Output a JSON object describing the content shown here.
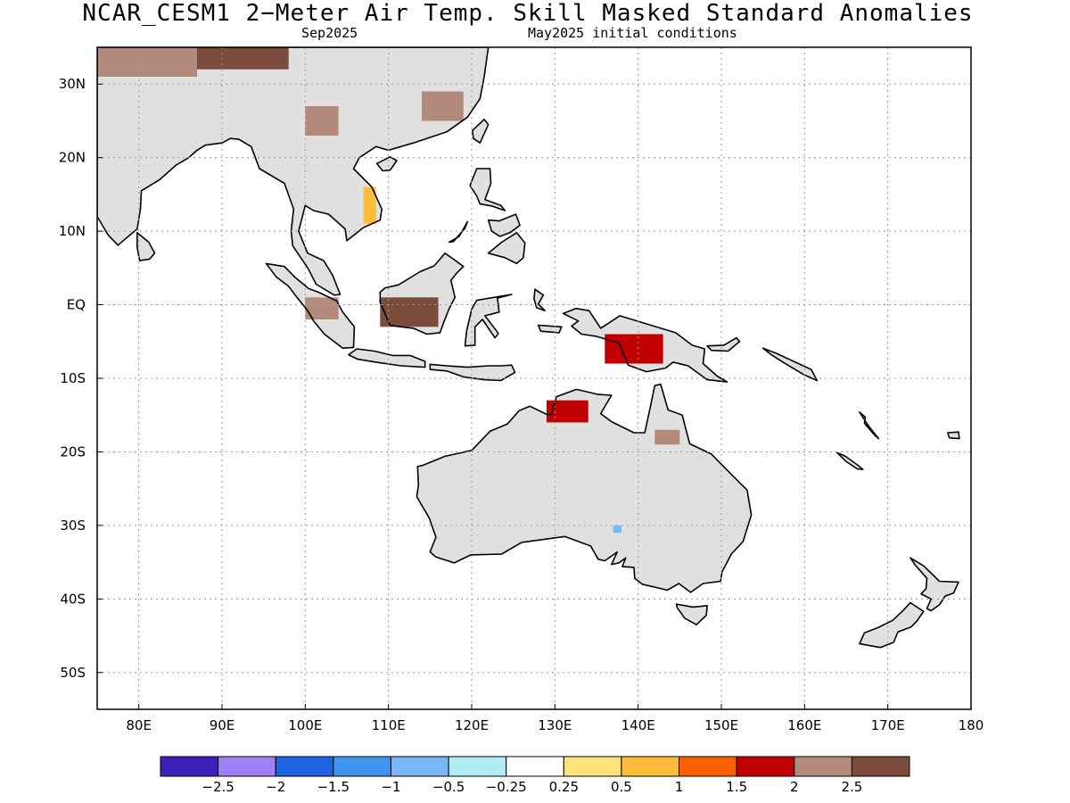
{
  "title": "NCAR_CESM1 2−Meter Air Temp. Skill Masked Standard Anomalies",
  "subtitle_left": "Sep2025",
  "subtitle_right": "May2025 initial conditions",
  "map": {
    "lon_range": [
      75,
      180
    ],
    "lat_range": [
      -55,
      35
    ],
    "grid": true,
    "lon_ticks": [
      {
        "v": 80,
        "label": "80E"
      },
      {
        "v": 90,
        "label": "90E"
      },
      {
        "v": 100,
        "label": "100E"
      },
      {
        "v": 110,
        "label": "110E"
      },
      {
        "v": 120,
        "label": "120E"
      },
      {
        "v": 130,
        "label": "130E"
      },
      {
        "v": 140,
        "label": "140E"
      },
      {
        "v": 150,
        "label": "150E"
      },
      {
        "v": 160,
        "label": "160E"
      },
      {
        "v": 170,
        "label": "170E"
      },
      {
        "v": 180,
        "label": "180"
      }
    ],
    "lat_ticks": [
      {
        "v": 30,
        "label": "30N"
      },
      {
        "v": 20,
        "label": "20N"
      },
      {
        "v": 10,
        "label": "10N"
      },
      {
        "v": 0,
        "label": "EQ"
      },
      {
        "v": -10,
        "label": "10S"
      },
      {
        "v": -20,
        "label": "20S"
      },
      {
        "v": -30,
        "label": "30S"
      },
      {
        "v": -40,
        "label": "40S"
      },
      {
        "v": -50,
        "label": "50S"
      }
    ],
    "anomaly_regions": [
      {
        "name": "south-china-hotspot",
        "level": 2,
        "lon": [
          100,
          104
        ],
        "lat": [
          23,
          27
        ]
      },
      {
        "name": "east-china-hotspot",
        "level": 2,
        "lon": [
          114,
          119
        ],
        "lat": [
          25,
          29
        ]
      },
      {
        "name": "tibet-high",
        "level": 2.5,
        "lon": [
          86,
          98
        ],
        "lat": [
          32,
          35
        ]
      },
      {
        "name": "himalaya-hot",
        "level": 2,
        "lon": [
          75,
          87
        ],
        "lat": [
          31,
          35
        ]
      },
      {
        "name": "indochina-warm",
        "level": 0.5,
        "lon": [
          107,
          108.5
        ],
        "lat": [
          11,
          16
        ]
      },
      {
        "name": "borneo-high",
        "level": 2.5,
        "lon": [
          109,
          116
        ],
        "lat": [
          -3,
          1
        ]
      },
      {
        "name": "sumatra-hot",
        "level": 2,
        "lon": [
          100,
          104
        ],
        "lat": [
          -2,
          1
        ]
      },
      {
        "name": "new-guinea-warm",
        "level": 1.5,
        "lon": [
          136,
          143
        ],
        "lat": [
          -8,
          -4
        ]
      },
      {
        "name": "north-australia-warm",
        "level": 1.5,
        "lon": [
          129,
          134
        ],
        "lat": [
          -16,
          -13
        ]
      },
      {
        "name": "cape-york-hot",
        "level": 2,
        "lon": [
          142,
          145
        ],
        "lat": [
          -19,
          -17
        ]
      },
      {
        "name": "central-australia-cool",
        "level": -1,
        "lon": [
          137,
          138
        ],
        "lat": [
          -31,
          -30
        ]
      }
    ]
  },
  "colorbar": {
    "colors": [
      "#3d1fb8",
      "#9e82f5",
      "#1e63e0",
      "#3e95ee",
      "#78b9f5",
      "#b0ecf6",
      "#ffffff",
      "#fee27a",
      "#fdbc3a",
      "#fb6000",
      "#c00000",
      "#b48a7c",
      "#7b4c3c"
    ],
    "labels": [
      "−2.5",
      "−2",
      "−1.5",
      "−1",
      "−0.5",
      "−0.25",
      "0.25",
      "0.5",
      "1",
      "1.5",
      "2",
      "2.5"
    ]
  }
}
